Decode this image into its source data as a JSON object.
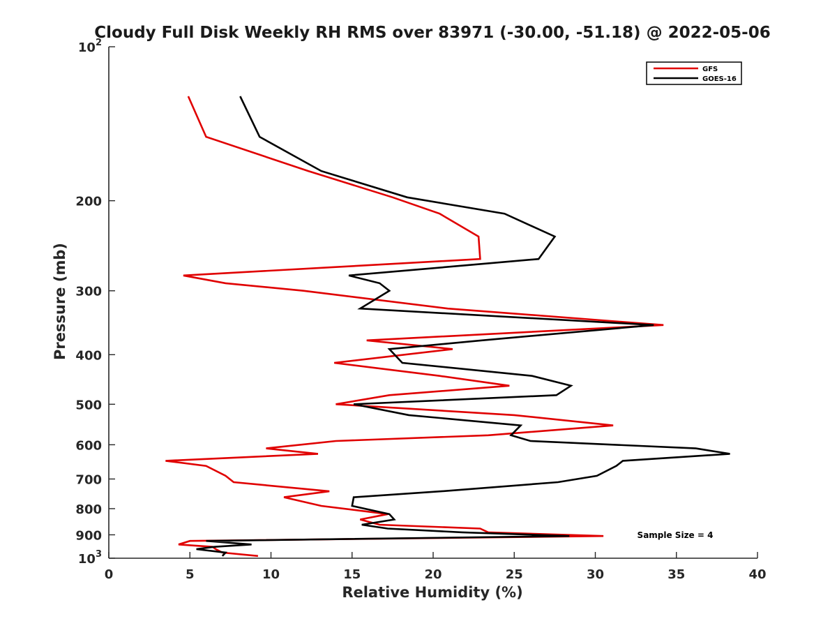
{
  "chart_data": {
    "type": "line",
    "title": "Cloudy Full Disk Weekly RH RMS over 83971 (-30.00, -51.18) @ 2022-05-06",
    "xlabel": "Relative Humidity (%)",
    "ylabel": "Pressure (mb)",
    "xlim": [
      0,
      40
    ],
    "ylim": [
      100,
      1000
    ],
    "y_scale": "log",
    "y_reversed": true,
    "x_ticks": [
      0,
      5,
      10,
      15,
      20,
      25,
      30,
      35,
      40
    ],
    "y_ticks": [
      {
        "value": 100,
        "base": "10",
        "exp": "2"
      },
      {
        "value": 200,
        "label": "200"
      },
      {
        "value": 300,
        "label": "300"
      },
      {
        "value": 400,
        "label": "400"
      },
      {
        "value": 500,
        "label": "500"
      },
      {
        "value": 600,
        "label": "600"
      },
      {
        "value": 700,
        "label": "700"
      },
      {
        "value": 800,
        "label": "800"
      },
      {
        "value": 900,
        "label": "900"
      },
      {
        "value": 1000,
        "base": "10",
        "exp": "3"
      }
    ],
    "legend_position": "top-right",
    "annotation": "Sample Size = 4",
    "series": [
      {
        "name": "GFS",
        "color": "#e00000",
        "points": [
          [
            4.9,
            125
          ],
          [
            6.0,
            150
          ],
          [
            12.3,
            175
          ],
          [
            17.5,
            197
          ],
          [
            20.4,
            212
          ],
          [
            22.8,
            235
          ],
          [
            22.9,
            260
          ],
          [
            4.6,
            280
          ],
          [
            7.2,
            290
          ],
          [
            12.0,
            300
          ],
          [
            20.9,
            325
          ],
          [
            34.2,
            350
          ],
          [
            15.9,
            375
          ],
          [
            21.2,
            390
          ],
          [
            13.9,
            415
          ],
          [
            20.4,
            440
          ],
          [
            24.7,
            460
          ],
          [
            17.3,
            480
          ],
          [
            14.0,
            500
          ],
          [
            25.0,
            525
          ],
          [
            31.1,
            550
          ],
          [
            23.4,
            575
          ],
          [
            14.0,
            590
          ],
          [
            9.7,
            610
          ],
          [
            12.9,
            625
          ],
          [
            3.5,
            645
          ],
          [
            6.0,
            660
          ],
          [
            7.2,
            690
          ],
          [
            7.7,
            710
          ],
          [
            13.6,
            740
          ],
          [
            10.8,
            760
          ],
          [
            13.1,
            790
          ],
          [
            17.2,
            820
          ],
          [
            15.5,
            840
          ],
          [
            16.7,
            860
          ],
          [
            22.9,
            875
          ],
          [
            23.4,
            890
          ],
          [
            30.5,
            905
          ],
          [
            5.0,
            925
          ],
          [
            4.3,
            940
          ],
          [
            6.4,
            950
          ],
          [
            6.6,
            960
          ],
          [
            7.0,
            975
          ],
          [
            9.2,
            990
          ]
        ]
      },
      {
        "name": "GOES-16",
        "color": "#000000",
        "points": [
          [
            8.1,
            125
          ],
          [
            9.3,
            150
          ],
          [
            13.1,
            175
          ],
          [
            18.4,
            197
          ],
          [
            24.4,
            212
          ],
          [
            27.5,
            235
          ],
          [
            26.5,
            260
          ],
          [
            14.8,
            280
          ],
          [
            16.7,
            290
          ],
          [
            17.3,
            300
          ],
          [
            15.5,
            325
          ],
          [
            33.6,
            350
          ],
          [
            23.0,
            375
          ],
          [
            17.3,
            390
          ],
          [
            18.1,
            415
          ],
          [
            26.1,
            440
          ],
          [
            28.5,
            460
          ],
          [
            27.6,
            480
          ],
          [
            15.1,
            500
          ],
          [
            18.5,
            525
          ],
          [
            25.4,
            550
          ],
          [
            24.8,
            575
          ],
          [
            26.0,
            590
          ],
          [
            36.2,
            610
          ],
          [
            38.3,
            625
          ],
          [
            31.7,
            645
          ],
          [
            31.3,
            660
          ],
          [
            30.1,
            690
          ],
          [
            27.7,
            710
          ],
          [
            20.5,
            740
          ],
          [
            15.1,
            760
          ],
          [
            15.0,
            790
          ],
          [
            17.3,
            820
          ],
          [
            17.6,
            840
          ],
          [
            15.6,
            860
          ],
          [
            17.2,
            875
          ],
          [
            21.8,
            890
          ],
          [
            28.4,
            905
          ],
          [
            6.0,
            925
          ],
          [
            8.8,
            940
          ],
          [
            6.5,
            950
          ],
          [
            5.4,
            960
          ],
          [
            7.2,
            975
          ],
          [
            7.0,
            990
          ]
        ]
      }
    ]
  }
}
